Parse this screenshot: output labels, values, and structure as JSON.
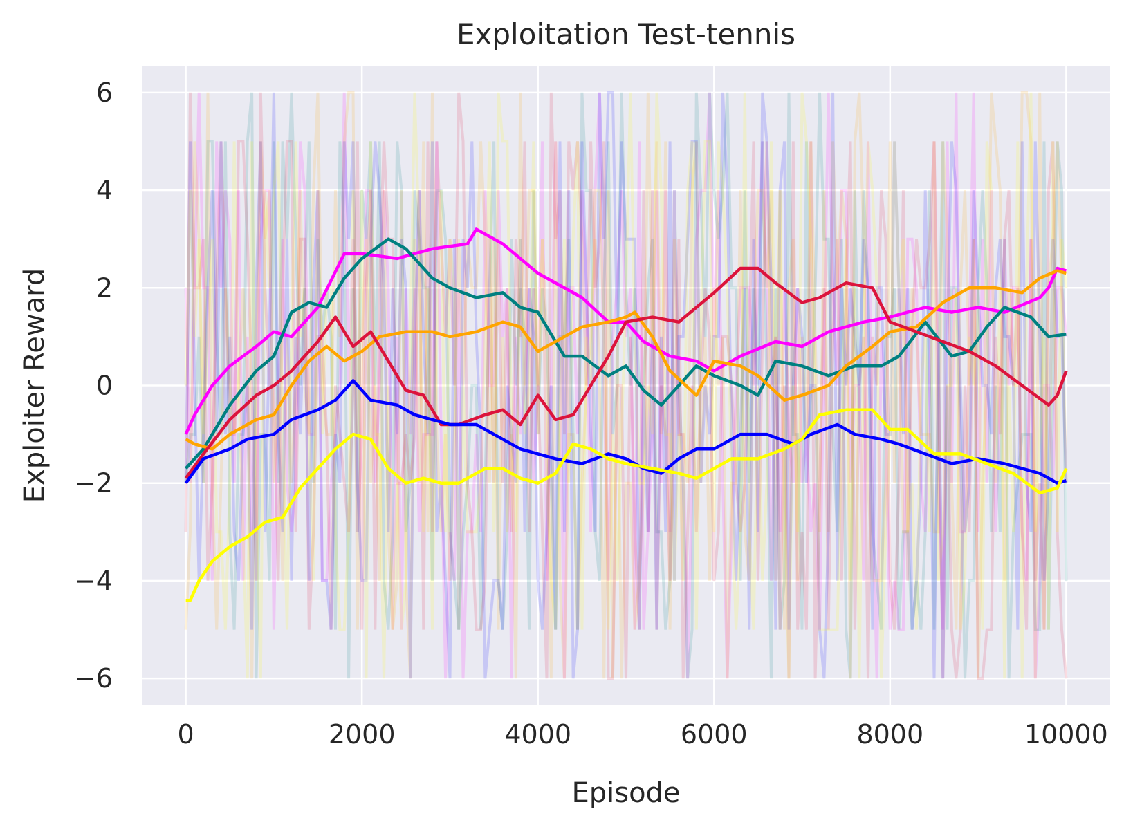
{
  "chart_data": {
    "type": "line",
    "title": "Exploitation Test-tennis",
    "xlabel": "Episode",
    "ylabel": "Exploiter Reward",
    "xlim": [
      -500,
      10500
    ],
    "ylim": [
      -6.55,
      6.55
    ],
    "xticks": [
      0,
      2000,
      4000,
      6000,
      8000,
      10000
    ],
    "xtick_labels": [
      "0",
      "2000",
      "4000",
      "6000",
      "8000",
      "10000"
    ],
    "yticks": [
      6,
      4,
      2,
      0,
      -2,
      -4,
      -6
    ],
    "ytick_labels": [
      "6",
      "4",
      "2",
      "0",
      "−2",
      "−4",
      "−6"
    ],
    "grid": true,
    "background": "#eaeaf2",
    "raw_episode_rewards_range": [
      -6,
      6
    ],
    "raw_opacity": 0.15,
    "series": [
      {
        "color": "#ff00ff",
        "x": [
          0,
          100,
          300,
          500,
          800,
          1000,
          1200,
          1500,
          1800,
          2000,
          2400,
          2800,
          3200,
          3300,
          3600,
          4000,
          4500,
          4800,
          5000,
          5200,
          5500,
          5800,
          6000,
          6300,
          6700,
          7000,
          7300,
          7700,
          8000,
          8400,
          8700,
          9000,
          9300,
          9700,
          9800,
          9900,
          10000
        ],
        "y": [
          -1.0,
          -0.6,
          0.0,
          0.4,
          0.8,
          1.1,
          1.0,
          1.6,
          2.7,
          2.7,
          2.6,
          2.8,
          2.9,
          3.2,
          2.9,
          2.3,
          1.8,
          1.3,
          1.3,
          0.9,
          0.6,
          0.5,
          0.3,
          0.6,
          0.9,
          0.8,
          1.1,
          1.3,
          1.4,
          1.6,
          1.5,
          1.6,
          1.5,
          1.8,
          2.0,
          2.4,
          2.35
        ]
      },
      {
        "color": "#008080",
        "x": [
          0,
          200,
          500,
          800,
          1000,
          1200,
          1400,
          1600,
          1800,
          2000,
          2300,
          2500,
          2800,
          3000,
          3300,
          3600,
          3800,
          4000,
          4300,
          4500,
          4800,
          5000,
          5200,
          5400,
          5600,
          5800,
          6000,
          6300,
          6500,
          6700,
          7000,
          7300,
          7600,
          7900,
          8100,
          8400,
          8700,
          8900,
          9100,
          9300,
          9600,
          9800,
          10000
        ],
        "y": [
          -1.7,
          -1.3,
          -0.4,
          0.3,
          0.6,
          1.5,
          1.7,
          1.6,
          2.2,
          2.6,
          3.0,
          2.8,
          2.2,
          2.0,
          1.8,
          1.9,
          1.6,
          1.5,
          0.6,
          0.6,
          0.2,
          0.4,
          -0.1,
          -0.4,
          0.0,
          0.4,
          0.2,
          0.0,
          -0.2,
          0.5,
          0.4,
          0.2,
          0.4,
          0.4,
          0.6,
          1.3,
          0.6,
          0.7,
          1.2,
          1.6,
          1.4,
          1.0,
          1.05
        ]
      },
      {
        "color": "#ffa500",
        "x": [
          0,
          100,
          300,
          500,
          800,
          1000,
          1200,
          1400,
          1600,
          1800,
          2000,
          2200,
          2500,
          2800,
          3000,
          3300,
          3600,
          3800,
          4000,
          4300,
          4500,
          4800,
          5000,
          5100,
          5300,
          5500,
          5800,
          6000,
          6300,
          6500,
          6800,
          7000,
          7300,
          7500,
          7800,
          8000,
          8300,
          8600,
          8900,
          9200,
          9500,
          9700,
          9900,
          10000
        ],
        "y": [
          -1.1,
          -1.2,
          -1.3,
          -1.0,
          -0.7,
          -0.6,
          0.0,
          0.5,
          0.8,
          0.5,
          0.7,
          1.0,
          1.1,
          1.1,
          1.0,
          1.1,
          1.3,
          1.2,
          0.7,
          1.0,
          1.2,
          1.3,
          1.4,
          1.5,
          1.0,
          0.3,
          -0.2,
          0.5,
          0.4,
          0.2,
          -0.3,
          -0.2,
          0.0,
          0.4,
          0.8,
          1.1,
          1.2,
          1.7,
          2.0,
          2.0,
          1.9,
          2.2,
          2.35,
          2.3
        ]
      },
      {
        "color": "#dc143c",
        "x": [
          0,
          200,
          500,
          800,
          1000,
          1200,
          1500,
          1700,
          1900,
          2100,
          2300,
          2500,
          2700,
          2900,
          3100,
          3400,
          3600,
          3800,
          4000,
          4200,
          4400,
          4600,
          4800,
          5000,
          5300,
          5600,
          5800,
          6000,
          6300,
          6500,
          6700,
          7000,
          7200,
          7500,
          7800,
          8000,
          8300,
          8600,
          8900,
          9200,
          9500,
          9800,
          9900,
          10000
        ],
        "y": [
          -1.9,
          -1.4,
          -0.7,
          -0.2,
          0.0,
          0.3,
          0.9,
          1.4,
          0.8,
          1.1,
          0.5,
          -0.1,
          -0.2,
          -0.8,
          -0.8,
          -0.6,
          -0.5,
          -0.8,
          -0.2,
          -0.7,
          -0.6,
          0.0,
          0.6,
          1.3,
          1.4,
          1.3,
          1.6,
          1.9,
          2.4,
          2.4,
          2.1,
          1.7,
          1.8,
          2.1,
          2.0,
          1.3,
          1.1,
          0.9,
          0.7,
          0.4,
          0.0,
          -0.4,
          -0.2,
          0.3
        ]
      },
      {
        "color": "#0000ff",
        "x": [
          0,
          200,
          500,
          700,
          1000,
          1200,
          1500,
          1700,
          1900,
          2100,
          2400,
          2600,
          2800,
          3000,
          3300,
          3600,
          3800,
          4000,
          4200,
          4500,
          4800,
          5000,
          5200,
          5400,
          5600,
          5800,
          6000,
          6300,
          6600,
          6900,
          7100,
          7400,
          7600,
          7900,
          8100,
          8400,
          8700,
          9000,
          9300,
          9500,
          9700,
          9900,
          10000
        ],
        "y": [
          -2.0,
          -1.5,
          -1.3,
          -1.1,
          -1.0,
          -0.7,
          -0.5,
          -0.3,
          0.1,
          -0.3,
          -0.4,
          -0.6,
          -0.7,
          -0.8,
          -0.8,
          -1.1,
          -1.3,
          -1.4,
          -1.5,
          -1.6,
          -1.4,
          -1.5,
          -1.7,
          -1.8,
          -1.5,
          -1.3,
          -1.3,
          -1.0,
          -1.0,
          -1.2,
          -1.0,
          -0.8,
          -1.0,
          -1.1,
          -1.2,
          -1.4,
          -1.6,
          -1.5,
          -1.6,
          -1.7,
          -1.8,
          -2.0,
          -1.95
        ]
      },
      {
        "color": "#ffff00",
        "x": [
          0,
          50,
          150,
          300,
          500,
          700,
          900,
          1100,
          1300,
          1500,
          1700,
          1900,
          2100,
          2300,
          2500,
          2700,
          2900,
          3100,
          3400,
          3600,
          3800,
          4000,
          4200,
          4400,
          4600,
          4800,
          5000,
          5300,
          5600,
          5800,
          6000,
          6200,
          6500,
          6800,
          7000,
          7200,
          7500,
          7800,
          8000,
          8200,
          8500,
          8800,
          9100,
          9400,
          9700,
          9900,
          10000
        ],
        "y": [
          -4.4,
          -4.4,
          -4.0,
          -3.6,
          -3.3,
          -3.1,
          -2.8,
          -2.7,
          -2.1,
          -1.7,
          -1.3,
          -1.0,
          -1.1,
          -1.7,
          -2.0,
          -1.9,
          -2.0,
          -2.0,
          -1.7,
          -1.7,
          -1.9,
          -2.0,
          -1.8,
          -1.2,
          -1.3,
          -1.5,
          -1.6,
          -1.7,
          -1.8,
          -1.9,
          -1.7,
          -1.5,
          -1.5,
          -1.3,
          -1.1,
          -0.6,
          -0.5,
          -0.5,
          -0.9,
          -0.9,
          -1.4,
          -1.4,
          -1.6,
          -1.8,
          -2.2,
          -2.1,
          -1.7
        ]
      }
    ]
  }
}
